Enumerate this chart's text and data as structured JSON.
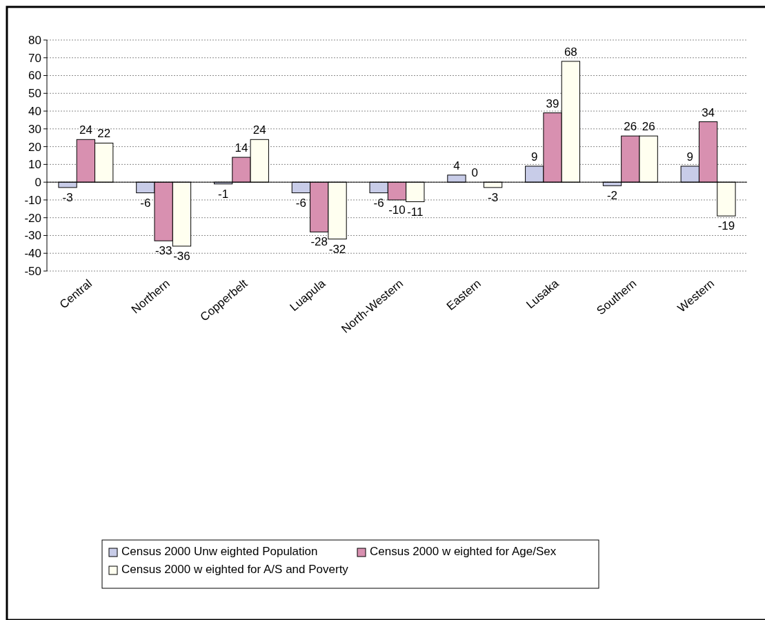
{
  "chart_data": {
    "type": "bar",
    "categories": [
      "Central",
      "Northern",
      "Copperbelt",
      "Luapula",
      "North-Western",
      "Eastern",
      "Lusaka",
      "Southern",
      "Western"
    ],
    "series": [
      {
        "name": "Census 2000 Unw eighted Population",
        "color": "#c8cce8",
        "values": [
          -3,
          -6,
          -1,
          -6,
          -6,
          4,
          9,
          -2,
          9
        ]
      },
      {
        "name": "Census 2000 w eighted for Age/Sex",
        "color": "#d890b0",
        "values": [
          24,
          -33,
          14,
          -28,
          -10,
          0,
          39,
          26,
          34
        ]
      },
      {
        "name": "Census 2000 w eighted for A/S and Poverty",
        "color": "#fffff0",
        "values": [
          22,
          -36,
          24,
          -32,
          -11,
          -3,
          68,
          26,
          -19
        ]
      }
    ],
    "ylim": [
      -50,
      80
    ],
    "yticks": [
      -50,
      -40,
      -30,
      -20,
      -10,
      0,
      10,
      20,
      30,
      40,
      50,
      60,
      70,
      80
    ],
    "grid": "y",
    "legend": "bottom",
    "data_labels": true
  }
}
